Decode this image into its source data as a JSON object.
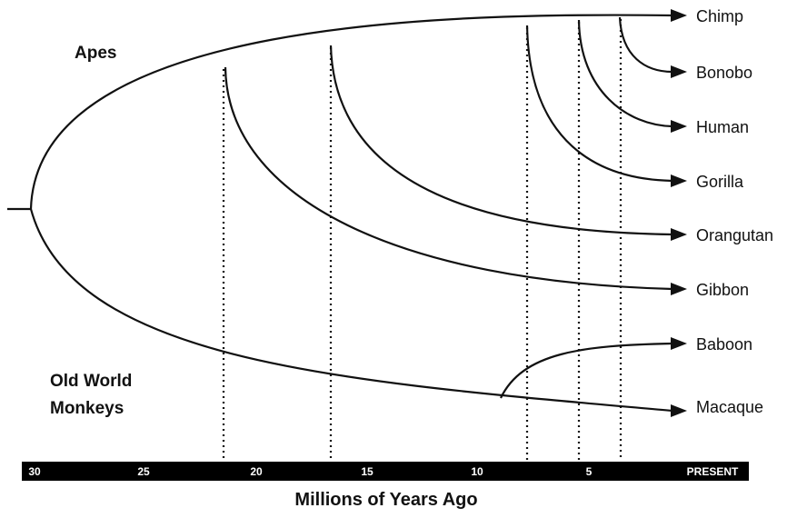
{
  "groups": {
    "apes": "Apes",
    "monkeys_line1": "Old World",
    "monkeys_line2": "Monkeys"
  },
  "taxa": [
    "Chimp",
    "Bonobo",
    "Human",
    "Gorilla",
    "Orangutan",
    "Gibbon",
    "Baboon",
    "Macaque"
  ],
  "axis": {
    "title": "Millions of Years Ago",
    "ticks": [
      "30",
      "25",
      "20",
      "15",
      "10",
      "5",
      "PRESENT"
    ],
    "tick_values_mya": [
      30,
      25,
      20,
      15,
      10,
      5,
      0
    ],
    "bar_color": "#000000",
    "tick_text_color": "#ffffff"
  },
  "divergences_mya": {
    "ape_monkey_root": 30,
    "gibbon": 21,
    "orangutan": 16,
    "gorilla": 7,
    "human": 4.8,
    "bonobo": 2.8,
    "baboon_macaque": 8.5
  },
  "line_color": "#111111"
}
